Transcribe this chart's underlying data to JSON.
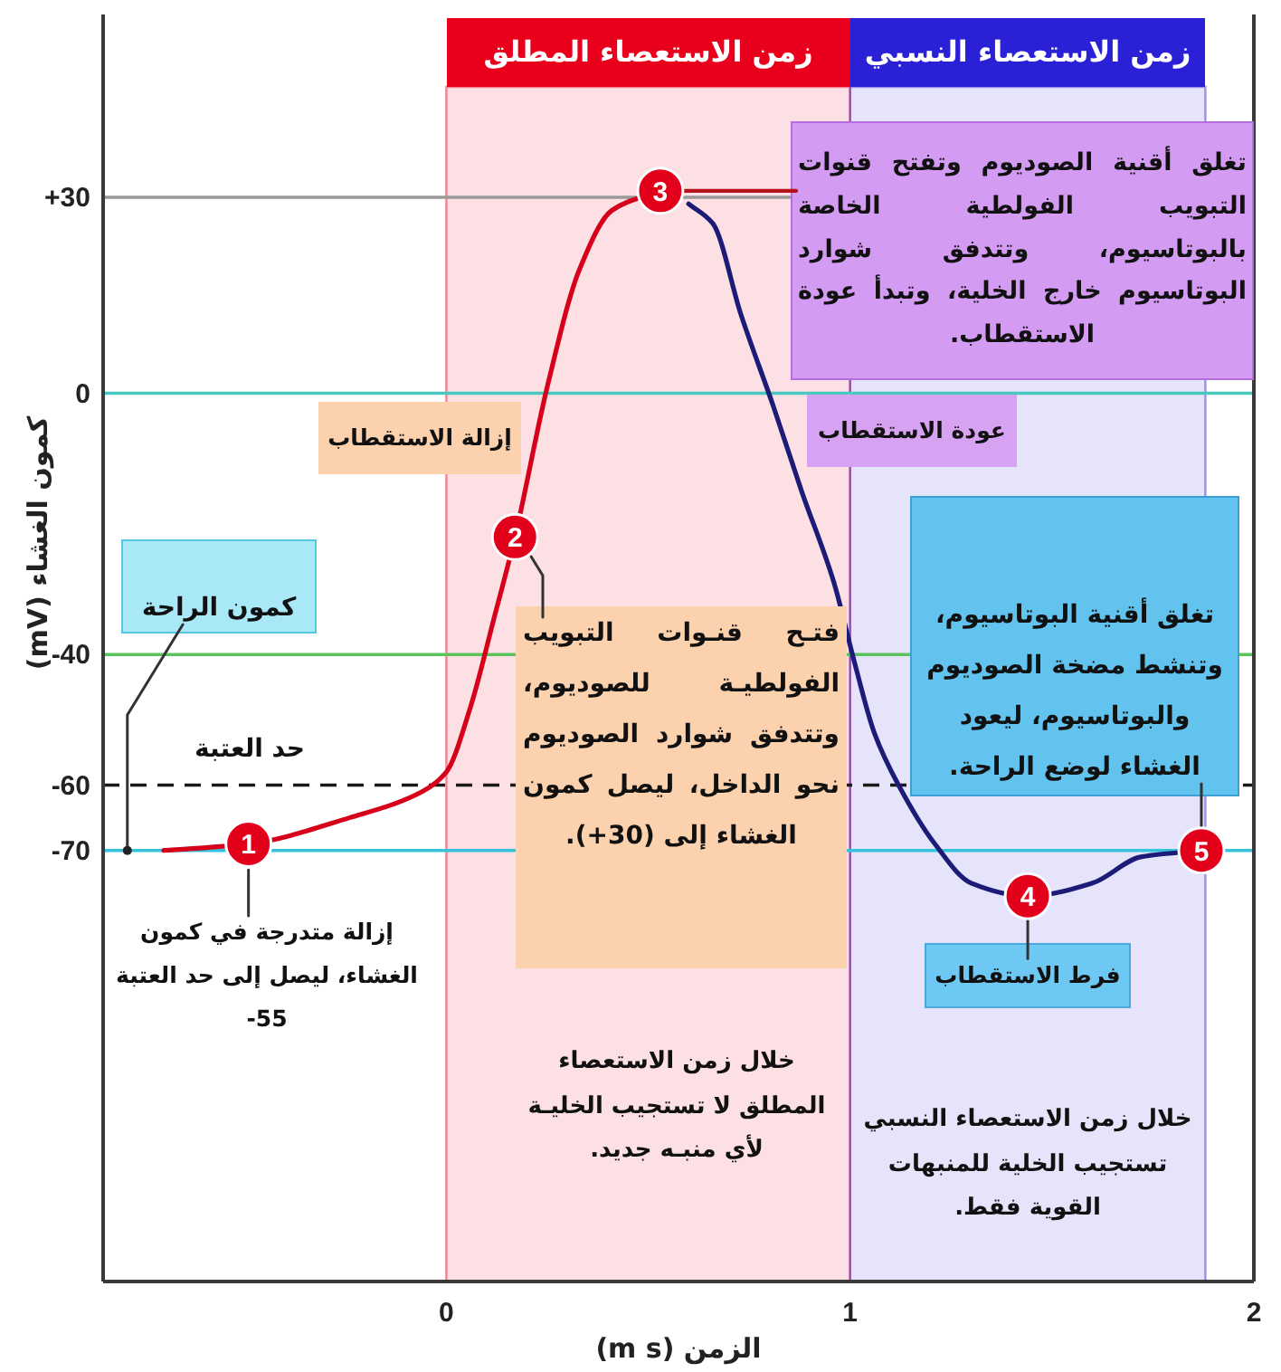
{
  "chart_data": {
    "type": "line",
    "xlabel": "الزمن (m s)",
    "ylabel": "كمون الغشاء (mV)",
    "xlim": [
      -0.85,
      2
    ],
    "xticks": [
      0,
      1,
      2
    ],
    "ylim": [
      -136,
      58
    ],
    "yticks": [
      {
        "value": 30,
        "label": "+30"
      },
      0,
      -40,
      -60,
      -70
    ],
    "series": [
      {
        "color": "#d7001b",
        "x": [
          -0.7,
          -0.49,
          -0.24,
          -0.06,
          0,
          0.06,
          0.12,
          0.17,
          0.25,
          0.33,
          0.41,
          0.53
        ],
        "values": [
          -70,
          -69,
          -65,
          -61,
          -58,
          -48,
          -34,
          -22,
          1,
          19,
          28,
          31
        ]
      },
      {
        "color": "#1c1c78",
        "x": [
          0.6,
          0.66,
          0.73,
          0.81,
          0.88,
          0.96,
          1.01,
          1.06,
          1.12,
          1.21,
          1.3,
          1.44,
          1.6,
          1.72,
          1.87
        ],
        "values": [
          29,
          26,
          12,
          -2,
          -15,
          -29,
          -41,
          -52,
          -60,
          -69,
          -75,
          -77,
          -75,
          -71,
          -70
        ]
      }
    ],
    "ref_lines": [
      {
        "axis": "y",
        "value": 30,
        "color": "#9a9a9a"
      },
      {
        "axis": "y",
        "value": 0,
        "color": "#48c9c0"
      },
      {
        "axis": "y",
        "value": -40,
        "color": "#5cc45c"
      },
      {
        "axis": "y",
        "value": -60,
        "label": "حد العتبة",
        "color": "#1a1a1a",
        "line_style": "dashed"
      },
      {
        "axis": "y",
        "value": -70,
        "color": "#35c3dc"
      }
    ],
    "bands": [
      {
        "axis": "x",
        "from": 0,
        "to": 1,
        "label": "زمن الاستعصاء المطلق",
        "color": "#e8001c"
      },
      {
        "axis": "x",
        "from": 1,
        "to": 1.88,
        "label": "زمن الاستعصاء النسبي",
        "color": "#2a20d6"
      }
    ],
    "annotations": [
      {
        "text": "1",
        "x": -0.49,
        "y": -69
      },
      {
        "text": "2",
        "x": 0.17,
        "y": -22
      },
      {
        "text": "3",
        "x": 0.53,
        "y": 31
      },
      {
        "text": "4",
        "x": 1.44,
        "y": -77
      },
      {
        "text": "5",
        "x": 1.87,
        "y": -70
      },
      "إزالة الاستقطاب",
      "عودة الاستقطاب",
      {
        "text": "إزالة متدرجة في كمون الغشاء، ليصل إلى حد العتبة -55",
        "x": -0.49,
        "y": -73
      },
      {
        "text": "فتـح قنـوات التبويب الفولطيـة للصوديوم، وتتدفق شوارد الصوديوم نحو الداخل، ليصل كمون الغشاء إلى (+30).",
        "x": 0.21,
        "y": -25
      },
      "خلال زمن الاستعصاء المطلق لا تستجيب الخليـة لأي منبـه جديد.",
      "خلال زمن الاستعصاء النسبي تستجيب الخلية للمنبهات القوية فقط.",
      {
        "text": "تغلق أقنية الصوديوم وتفتح قنوات التبويب الفولطية الخاصة بالبوتاسيوم، وتتدفق شوارد البوتاسيوم خارج الخلية، وتبدأ عودة الاستقطاب.",
        "x": 0.59,
        "y": 31
      },
      {
        "text": "تغلق أقنية البوتاسيوم، وتنشط مضخة الصوديوم والبوتاسيوم، ليعود الغشاء لوضع الراحة.",
        "x": 1.87,
        "y": -70
      },
      {
        "text": "فرط الاستقطاب",
        "x": 1.44,
        "y": -77
      },
      {
        "text": "كمون الراحة",
        "x": -0.79,
        "y": -70
      }
    ]
  }
}
